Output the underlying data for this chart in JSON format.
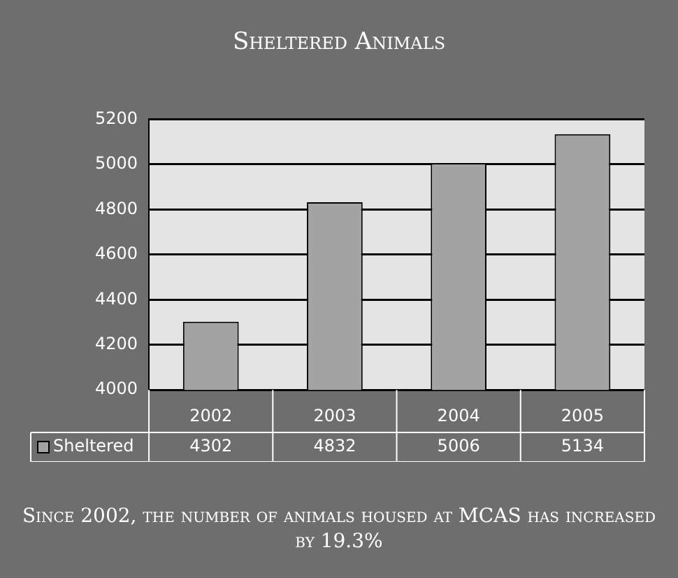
{
  "chart_data": {
    "type": "bar",
    "title": "Sheltered Animals",
    "categories": [
      "2002",
      "2003",
      "2004",
      "2005"
    ],
    "series": [
      {
        "name": "Sheltered",
        "color": "#a3a3a3",
        "values": [
          4302,
          4832,
          5006,
          5134
        ]
      }
    ],
    "ylim": [
      4000,
      5200
    ],
    "yticks": [
      4000,
      4200,
      4400,
      4600,
      4800,
      5000,
      5200
    ],
    "grid": "y",
    "legend": "bottom",
    "data_labels": true,
    "annotations": [
      "Since 2002, the number of animals housed at MCAS has increased by 19.3%"
    ]
  }
}
